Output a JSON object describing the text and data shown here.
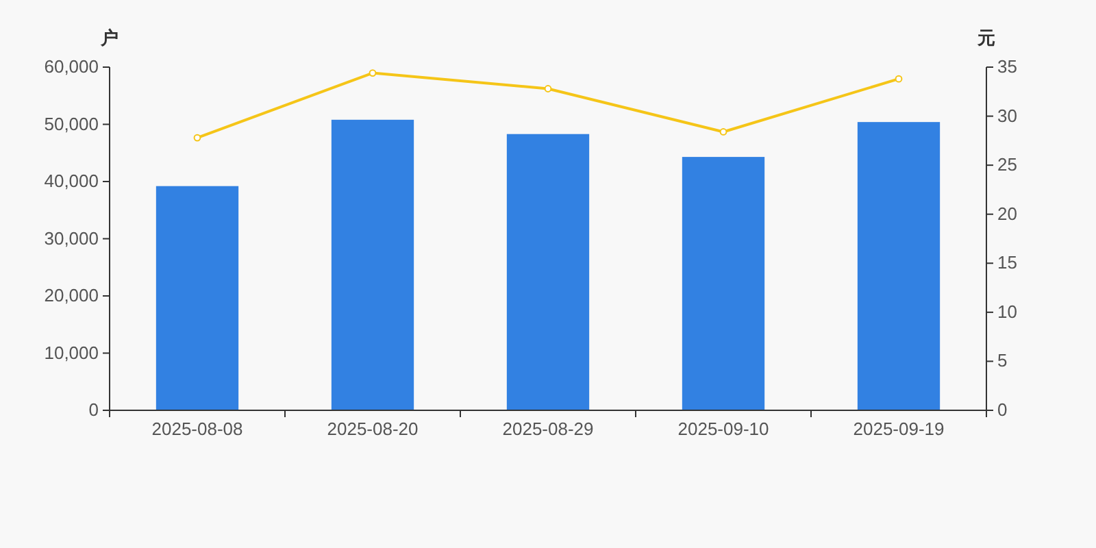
{
  "chart_data": {
    "type": "bar",
    "ylabel": "户",
    "y2label": "元",
    "categories": [
      "2025-08-08",
      "2025-08-20",
      "2025-08-29",
      "2025-09-10",
      "2025-09-19"
    ],
    "series": [
      {
        "color": "#3281e2",
        "values": [
          39200,
          50800,
          48300,
          44300,
          50400
        ]
      },
      {
        "type": "line",
        "axis": "y2",
        "color": "#f5c518",
        "marker": "circle",
        "values": [
          27.8,
          34.4,
          32.8,
          28.4,
          33.8
        ]
      }
    ],
    "ylim": [
      0,
      60000
    ],
    "yticks": [
      {
        "value": 0,
        "label": "0"
      },
      {
        "value": 10000,
        "label": "10,000"
      },
      {
        "value": 20000,
        "label": "20,000"
      },
      {
        "value": 30000,
        "label": "30,000"
      },
      {
        "value": 40000,
        "label": "40,000"
      },
      {
        "value": 50000,
        "label": "50,000"
      },
      {
        "value": 60000,
        "label": "60,000"
      }
    ],
    "y2lim": [
      0,
      35
    ],
    "y2ticks": [
      0,
      5,
      10,
      15,
      20,
      25,
      30,
      35
    ],
    "grid": false
  }
}
